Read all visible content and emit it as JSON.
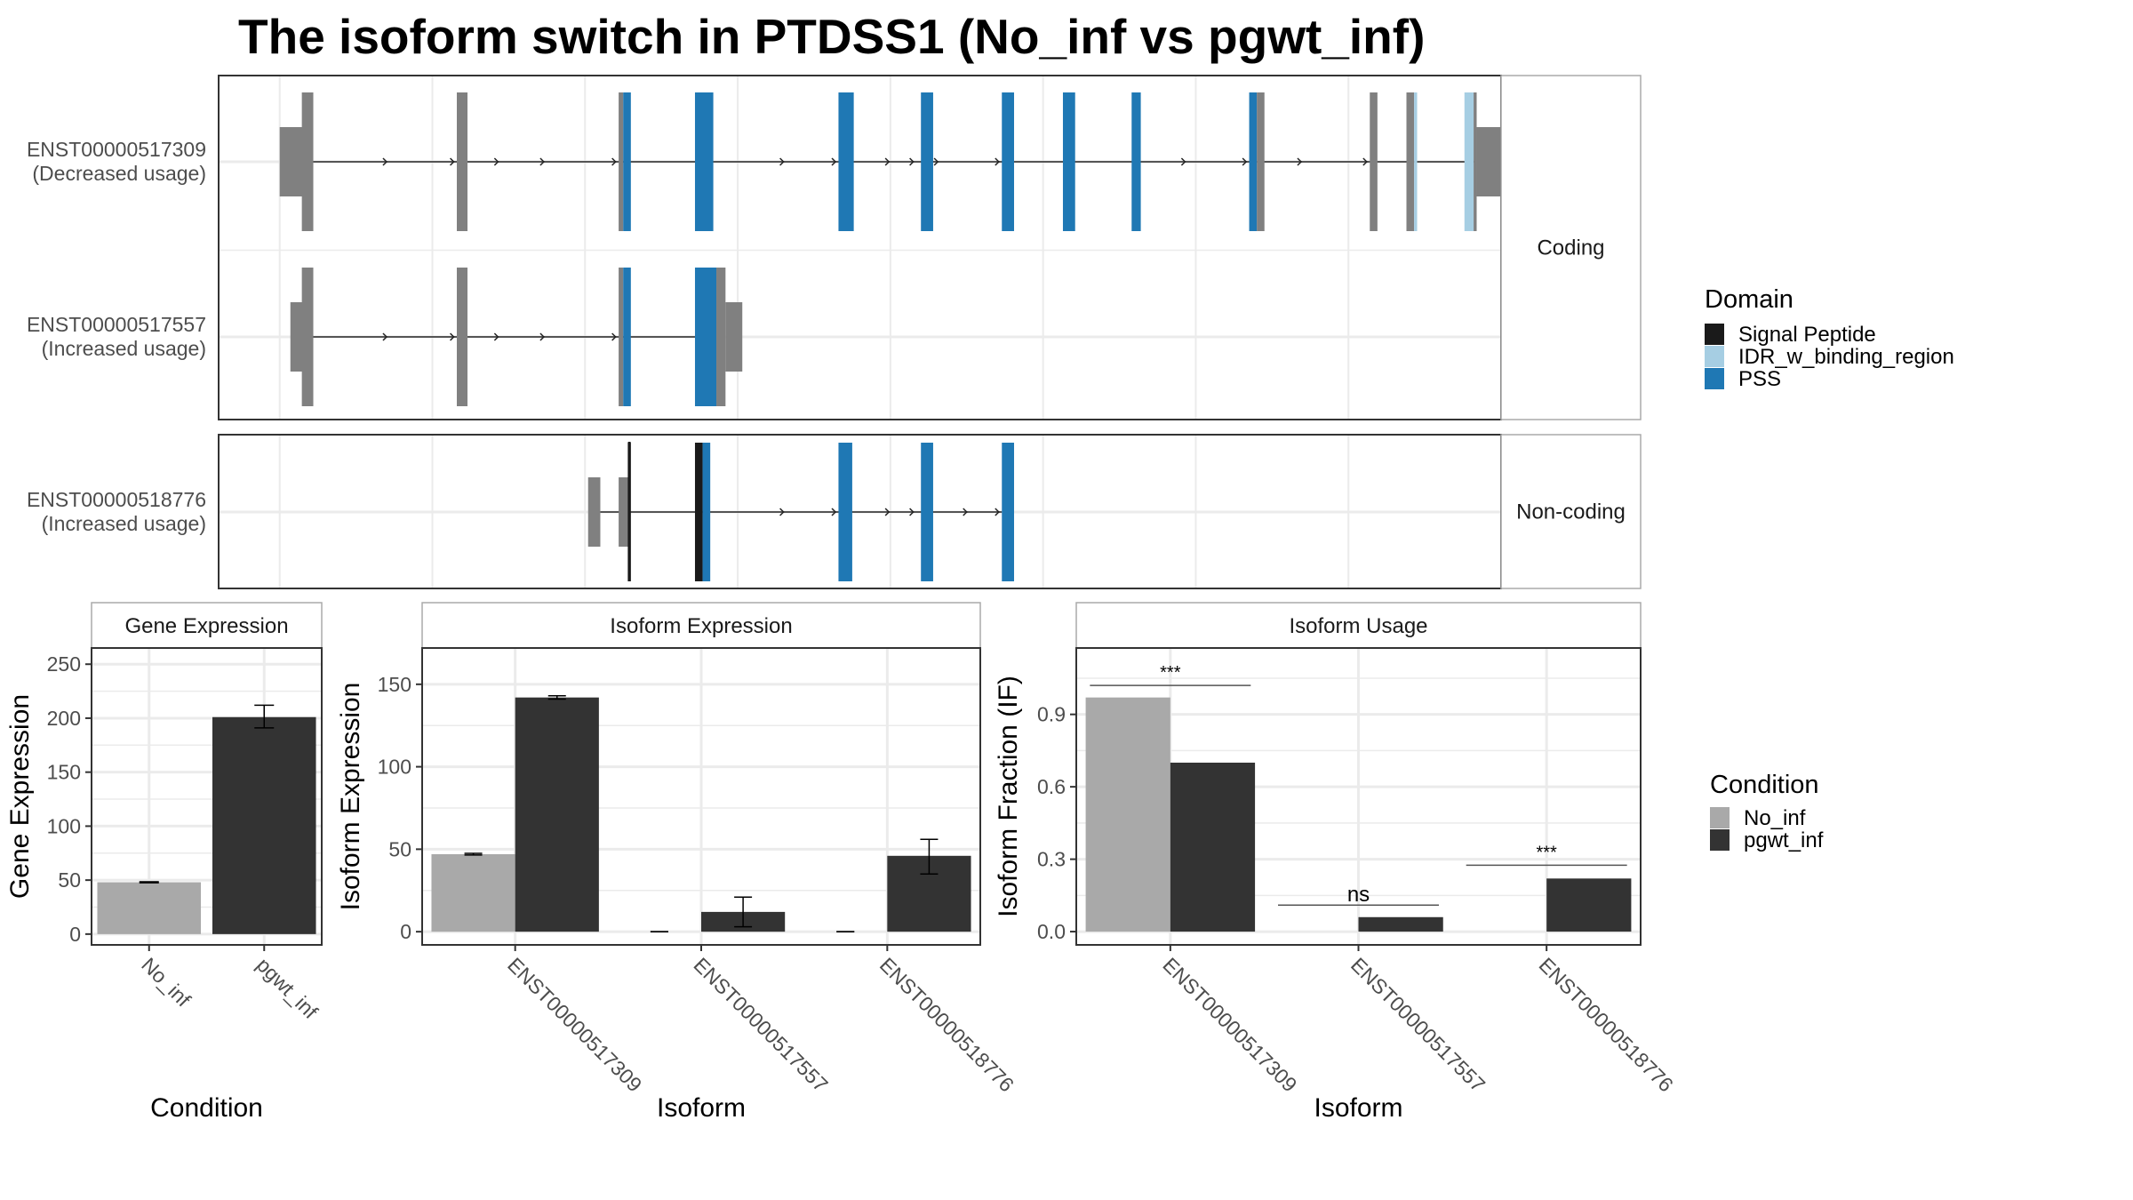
{
  "title": "The isoform switch in PTDSS1 (No_inf vs pgwt_inf)",
  "colors": {
    "exon_default": "#808080",
    "signal_peptide": "#1a1a1a",
    "idr": "#a6cee3",
    "pss": "#1f78b4",
    "no_inf": "#a9a9a9",
    "pgwt_inf": "#333333",
    "grid": "#ebebeb",
    "intron": "#555555"
  },
  "chart_data": [
    {
      "type": "gene-structure",
      "name": "transcript_structure",
      "facets": [
        {
          "strip_label": "Coding",
          "transcripts": [
            {
              "id": "ENST00000517309",
              "label_line1": "ENST00000517309",
              "label_line2": "(Decreased usage)",
              "exons": [
                {
                  "start": 0.0,
                  "end": 2.2,
                  "height": "utr",
                  "fill": "exon_default"
                },
                {
                  "start": 1.45,
                  "end": 2.2,
                  "height": "cds",
                  "fill": "exon_default"
                },
                {
                  "start": 11.6,
                  "end": 12.3,
                  "height": "cds",
                  "fill": "exon_default"
                },
                {
                  "start": 22.2,
                  "end": 22.5,
                  "height": "cds",
                  "fill": "exon_default"
                },
                {
                  "start": 22.5,
                  "end": 23.0,
                  "height": "cds",
                  "fill": "pss"
                },
                {
                  "start": 27.2,
                  "end": 28.4,
                  "height": "cds",
                  "fill": "pss"
                },
                {
                  "start": 36.6,
                  "end": 37.6,
                  "height": "cds",
                  "fill": "pss"
                },
                {
                  "start": 42.0,
                  "end": 42.8,
                  "height": "cds",
                  "fill": "pss"
                },
                {
                  "start": 47.3,
                  "end": 48.1,
                  "height": "cds",
                  "fill": "pss"
                },
                {
                  "start": 51.3,
                  "end": 52.1,
                  "height": "cds",
                  "fill": "pss"
                },
                {
                  "start": 55.8,
                  "end": 56.4,
                  "height": "cds",
                  "fill": "pss"
                },
                {
                  "start": 63.5,
                  "end": 64.0,
                  "height": "cds",
                  "fill": "pss"
                },
                {
                  "start": 64.0,
                  "end": 64.5,
                  "height": "cds",
                  "fill": "exon_default"
                },
                {
                  "start": 71.4,
                  "end": 71.9,
                  "height": "cds",
                  "fill": "exon_default"
                },
                {
                  "start": 73.8,
                  "end": 74.3,
                  "height": "cds",
                  "fill": "exon_default"
                },
                {
                  "start": 74.3,
                  "end": 74.5,
                  "height": "cds",
                  "fill": "idr"
                },
                {
                  "start": 77.6,
                  "end": 78.2,
                  "height": "cds",
                  "fill": "idr"
                },
                {
                  "start": 78.2,
                  "end": 78.4,
                  "height": "cds",
                  "fill": "exon_default"
                },
                {
                  "start": 78.4,
                  "end": 82.3,
                  "height": "utr",
                  "fill": "exon_default"
                }
              ],
              "span": [
                2.2,
                78.4
              ],
              "arrows": [
                7.0,
                11.4,
                14.3,
                17.3,
                22.0,
                33.0,
                36.4,
                39.9,
                41.5,
                43.1,
                47.1,
                59.3,
                63.3,
                66.9,
                71.2
              ]
            },
            {
              "id": "ENST00000517557",
              "label_line1": "ENST00000517557",
              "label_line2": "(Increased usage)",
              "exons": [
                {
                  "start": 0.7,
                  "end": 2.2,
                  "height": "utr",
                  "fill": "exon_default"
                },
                {
                  "start": 1.45,
                  "end": 2.2,
                  "height": "cds",
                  "fill": "exon_default"
                },
                {
                  "start": 11.6,
                  "end": 12.3,
                  "height": "cds",
                  "fill": "exon_default"
                },
                {
                  "start": 22.2,
                  "end": 22.5,
                  "height": "cds",
                  "fill": "exon_default"
                },
                {
                  "start": 22.5,
                  "end": 23.0,
                  "height": "cds",
                  "fill": "pss"
                },
                {
                  "start": 27.2,
                  "end": 28.6,
                  "height": "cds",
                  "fill": "pss"
                },
                {
                  "start": 28.6,
                  "end": 29.2,
                  "height": "cds",
                  "fill": "exon_default"
                },
                {
                  "start": 29.2,
                  "end": 30.3,
                  "height": "utr",
                  "fill": "exon_default"
                }
              ],
              "span": [
                2.2,
                27.2
              ],
              "arrows": [
                7.0,
                11.4,
                14.3,
                17.3,
                22.0
              ]
            }
          ]
        },
        {
          "strip_label": "Non-coding",
          "transcripts": [
            {
              "id": "ENST00000518776",
              "label_line1": "ENST00000518776",
              "label_line2": "(Increased usage)",
              "exons": [
                {
                  "start": 20.2,
                  "end": 21.0,
                  "height": "utr",
                  "fill": "exon_default"
                },
                {
                  "start": 22.2,
                  "end": 22.9,
                  "height": "utr",
                  "fill": "exon_default"
                },
                {
                  "start": 22.8,
                  "end": 23.0,
                  "height": "cds",
                  "fill": "signal_peptide"
                },
                {
                  "start": 27.2,
                  "end": 27.7,
                  "height": "cds",
                  "fill": "signal_peptide"
                },
                {
                  "start": 27.7,
                  "end": 28.2,
                  "height": "cds",
                  "fill": "pss"
                },
                {
                  "start": 36.6,
                  "end": 37.5,
                  "height": "cds",
                  "fill": "pss"
                },
                {
                  "start": 42.0,
                  "end": 42.8,
                  "height": "cds",
                  "fill": "pss"
                },
                {
                  "start": 47.3,
                  "end": 48.1,
                  "height": "cds",
                  "fill": "pss"
                }
              ],
              "span": [
                21.0,
                47.3
              ],
              "arrows": [
                33.0,
                36.4,
                39.9,
                41.5,
                45.0,
                47.1
              ]
            }
          ]
        }
      ],
      "x_range": [
        -4,
        80
      ],
      "x_gridlines": [
        0,
        10,
        20,
        30,
        40,
        50,
        60,
        70
      ],
      "legend": {
        "title": "Domain",
        "placement": "right",
        "entries": [
          {
            "label": "Signal Peptide",
            "color_key": "signal_peptide"
          },
          {
            "label": "IDR_w_binding_region",
            "color_key": "idr"
          },
          {
            "label": "PSS",
            "color_key": "pss"
          }
        ]
      }
    },
    {
      "type": "bar",
      "name": "gene_expression",
      "title": "Gene Expression",
      "xlabel": "Condition",
      "ylabel": "Gene Expression",
      "categories": [
        "No_inf",
        "pgwt_inf"
      ],
      "values": [
        48,
        201
      ],
      "errors": [
        [
          47.5,
          48.5
        ],
        [
          191,
          212
        ]
      ],
      "bar_colors": [
        "no_inf",
        "pgwt_inf"
      ],
      "ylim": [
        -10,
        265
      ],
      "yticks": [
        0,
        50,
        100,
        150,
        200,
        250
      ],
      "grid": true
    },
    {
      "type": "bar",
      "name": "isoform_expression",
      "title": "Isoform Expression",
      "xlabel": "Isoform",
      "ylabel": "Isoform Expression",
      "categories": [
        "ENST00000517309",
        "ENST00000517557",
        "ENST00000518776"
      ],
      "series": [
        {
          "name": "No_inf",
          "color_key": "no_inf",
          "values": [
            47,
            0,
            0
          ],
          "errors": [
            [
              46.5,
              47.5
            ],
            [
              0,
              0
            ],
            [
              0,
              0
            ]
          ]
        },
        {
          "name": "pgwt_inf",
          "color_key": "pgwt_inf",
          "values": [
            142,
            12,
            46
          ],
          "errors": [
            [
              141,
              143
            ],
            [
              3,
              21
            ],
            [
              35,
              56
            ]
          ]
        }
      ],
      "ylim": [
        -8,
        172
      ],
      "yticks": [
        0,
        50,
        100,
        150
      ],
      "grid": true
    },
    {
      "type": "bar",
      "name": "isoform_usage",
      "title": "Isoform Usage",
      "xlabel": "Isoform",
      "ylabel": "Isoform Fraction (IF)",
      "categories": [
        "ENST00000517309",
        "ENST00000517557",
        "ENST00000518776"
      ],
      "series": [
        {
          "name": "No_inf",
          "color_key": "no_inf",
          "values": [
            0.97,
            0,
            0
          ]
        },
        {
          "name": "pgwt_inf",
          "color_key": "pgwt_inf",
          "values": [
            0.7,
            0.06,
            0.22
          ]
        }
      ],
      "significance": [
        {
          "label": "***",
          "y": 1.02
        },
        {
          "label": "ns",
          "y": 0.11
        },
        {
          "label": "***",
          "y": 0.275
        }
      ],
      "ylim": [
        -0.055,
        1.175
      ],
      "yticks": [
        0.0,
        0.3,
        0.6,
        0.9
      ],
      "ytick_labels": [
        "0.0",
        "0.3",
        "0.6",
        "0.9"
      ],
      "grid": true
    }
  ],
  "condition_legend": {
    "title": "Condition",
    "placement": "right",
    "entries": [
      {
        "label": "No_inf",
        "color_key": "no_inf"
      },
      {
        "label": "pgwt_inf",
        "color_key": "pgwt_inf"
      }
    ]
  }
}
